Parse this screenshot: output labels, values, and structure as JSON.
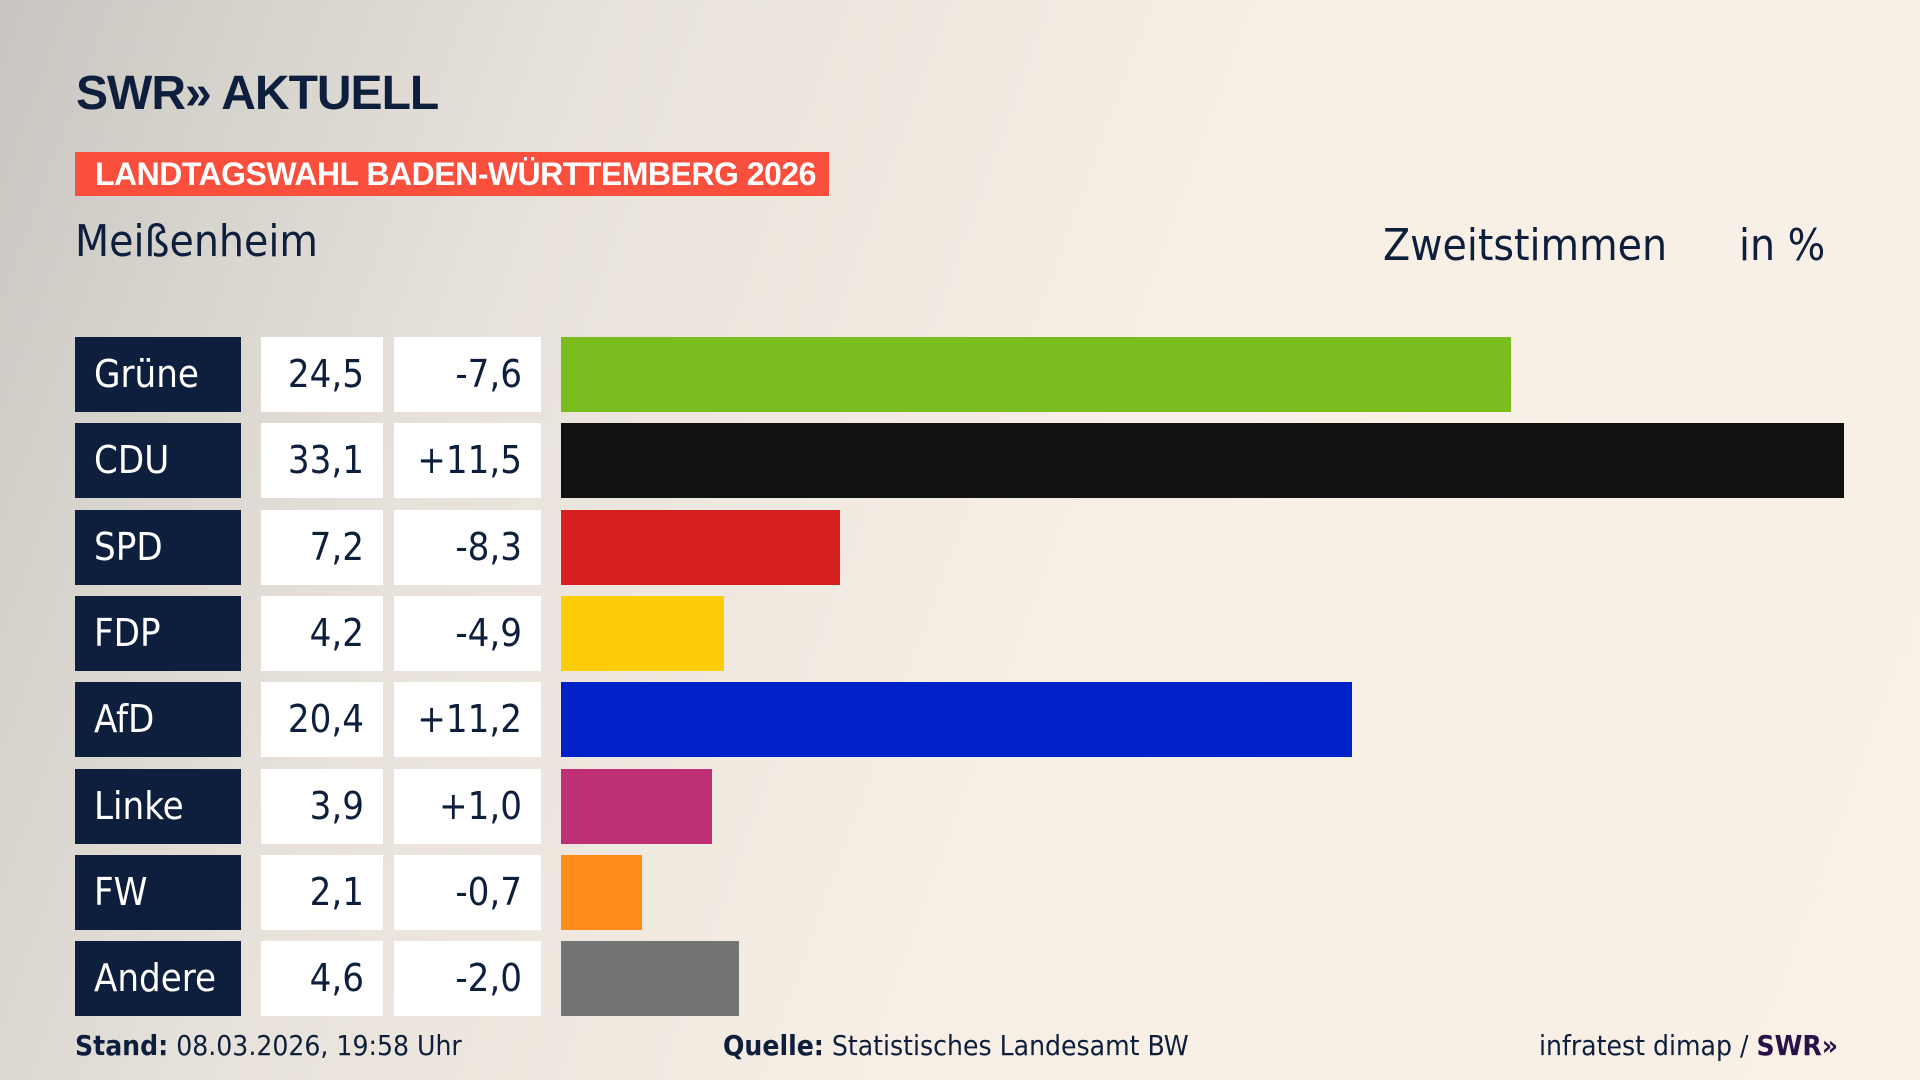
{
  "header": {
    "logo": "SWR» AKTUELL",
    "banner": "LANDTAGSWAHL BADEN-WÜRTTEMBERG 2026",
    "location": "Meißenheim",
    "measure": "Zweitstimmen",
    "unit": "in %"
  },
  "chart_data": {
    "type": "bar",
    "orientation": "horizontal",
    "categories": [
      "Grüne",
      "CDU",
      "SPD",
      "FDP",
      "AfD",
      "Linke",
      "FW",
      "Andere"
    ],
    "values": [
      24.5,
      33.1,
      7.2,
      4.2,
      20.4,
      3.9,
      2.1,
      4.6
    ],
    "value_labels": [
      "24,5",
      "33,1",
      "7,2",
      "4,2",
      "20,4",
      "3,9",
      "2,1",
      "4,6"
    ],
    "diffs": [
      -7.6,
      11.5,
      -8.3,
      -4.9,
      11.2,
      1.0,
      -0.7,
      -2.0
    ],
    "diff_labels": [
      "-7,6",
      "+11,5",
      "-8,3",
      "-4,9",
      "+11,2",
      "+1,0",
      "-0,7",
      "-2,0"
    ],
    "colors": [
      "#7bbd1f",
      "#111111",
      "#d6201f",
      "#fdcd0a",
      "#0021c8",
      "#bd3075",
      "#fe8b1a",
      "#747474"
    ],
    "grid": false
  },
  "footer": {
    "stand_label": "Stand:",
    "stand_value": "08.03.2026, 19:58 Uhr",
    "source_label": "Quelle:",
    "source_value": "Statistisches Landesamt BW",
    "credit": "infratest dimap / ",
    "credit_logo": "SWR»"
  }
}
